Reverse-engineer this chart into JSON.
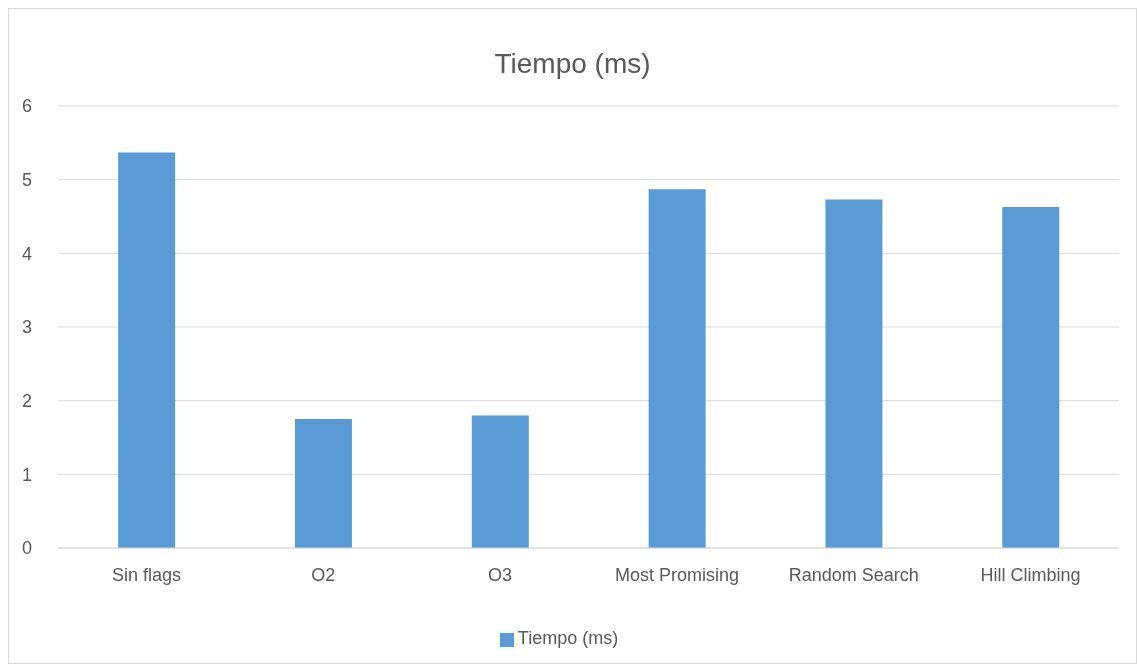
{
  "chart_data": {
    "type": "bar",
    "title": "Tiempo (ms)",
    "categories": [
      "Sin flags",
      "O2",
      "O3",
      "Most Promising",
      "Random Search",
      "Hill Climbing"
    ],
    "series": [
      {
        "name": "Tiempo (ms)",
        "color": "#5b9bd5",
        "values": [
          5.37,
          1.75,
          1.8,
          4.87,
          4.73,
          4.63
        ]
      }
    ],
    "ylim": [
      0,
      6
    ],
    "yticks": [
      0,
      1,
      2,
      3,
      4,
      5,
      6
    ],
    "grid": "y",
    "legend": "bottom"
  }
}
